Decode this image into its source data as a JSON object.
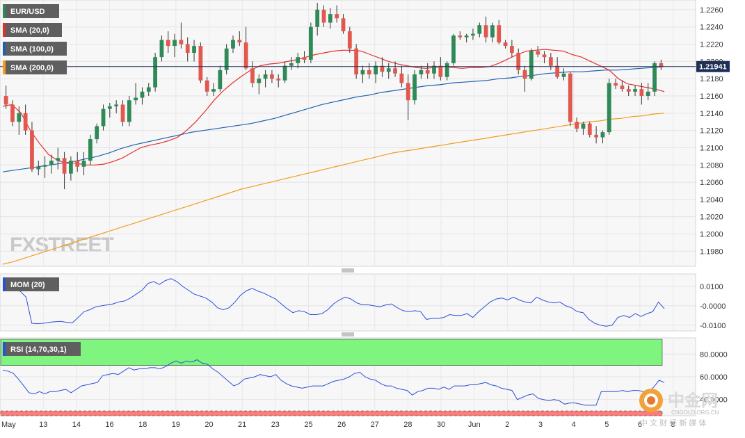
{
  "chart_data": [
    {
      "type": "candlestick",
      "panel": "price",
      "symbol": "EUR/USD",
      "timeframe": "4H",
      "ylim": [
        1.1965,
        1.2268
      ],
      "y_ticks": [
        "1.2260",
        "1.2240",
        "1.2220",
        "1.2200",
        "1.2180",
        "1.2160",
        "1.2140",
        "1.2120",
        "1.2100",
        "1.2080",
        "1.2060",
        "1.2040",
        "1.2020",
        "1.2000",
        "1.1980"
      ],
      "last_price": 1.21941,
      "last_price_label": "1.21941",
      "x_labels": [
        "May",
        "13",
        "14",
        "16",
        "18",
        "19",
        "20",
        "21",
        "23",
        "25",
        "26",
        "27",
        "28",
        "30",
        "Jun",
        "2",
        "3",
        "4",
        "5",
        "6",
        "8"
      ],
      "legend": [
        {
          "label": "EUR/USD",
          "color": "#2e8b57"
        },
        {
          "label": "SMA (20,0)",
          "color": "#e52f2f"
        },
        {
          "label": "SMA (100,0)",
          "color": "#2060b0"
        },
        {
          "label": "SMA (200,0)",
          "color": "#f39c1f"
        }
      ],
      "candles": [
        [
          1.216,
          1.2172,
          1.2145,
          1.215
        ],
        [
          1.215,
          1.2155,
          1.2125,
          1.213
        ],
        [
          1.213,
          1.2148,
          1.2115,
          1.214
        ],
        [
          1.214,
          1.215,
          1.2115,
          1.212
        ],
        [
          1.212,
          1.213,
          1.2072,
          1.2075
        ],
        [
          1.2075,
          1.2085,
          1.2068,
          1.2078
        ],
        [
          1.2078,
          1.209,
          1.2065,
          1.208
        ],
        [
          1.208,
          1.2092,
          1.207,
          1.2085
        ],
        [
          1.2085,
          1.21,
          1.2075,
          1.2088
        ],
        [
          1.2088,
          1.2095,
          1.2052,
          1.207
        ],
        [
          1.207,
          1.209,
          1.2062,
          1.2085
        ],
        [
          1.2085,
          1.2095,
          1.2072,
          1.2078
        ],
        [
          1.2078,
          1.2095,
          1.2068,
          1.2085
        ],
        [
          1.2085,
          1.2115,
          1.208,
          1.211
        ],
        [
          1.211,
          1.2128,
          1.2105,
          1.2125
        ],
        [
          1.2125,
          1.215,
          1.212,
          1.2145
        ],
        [
          1.2145,
          1.2152,
          1.2135,
          1.2148
        ],
        [
          1.2148,
          1.2155,
          1.214,
          1.215
        ],
        [
          1.215,
          1.2155,
          1.2125,
          1.213
        ],
        [
          1.213,
          1.216,
          1.2125,
          1.2155
        ],
        [
          1.2155,
          1.2175,
          1.215,
          1.2158
        ],
        [
          1.2158,
          1.217,
          1.215,
          1.2165
        ],
        [
          1.2165,
          1.2175,
          1.216,
          1.217
        ],
        [
          1.217,
          1.221,
          1.2165,
          1.2205
        ],
        [
          1.2205,
          1.223,
          1.22,
          1.2225
        ],
        [
          1.2225,
          1.2235,
          1.221,
          1.2218
        ],
        [
          1.2218,
          1.2232,
          1.2205,
          1.2225
        ],
        [
          1.2225,
          1.2245,
          1.2215,
          1.222
        ],
        [
          1.222,
          1.2228,
          1.22,
          1.221
        ],
        [
          1.221,
          1.2225,
          1.22,
          1.2218
        ],
        [
          1.2218,
          1.2222,
          1.2175,
          1.2178
        ],
        [
          1.2178,
          1.2182,
          1.216,
          1.2165
        ],
        [
          1.2165,
          1.2175,
          1.216,
          1.2168
        ],
        [
          1.2168,
          1.2195,
          1.2165,
          1.219
        ],
        [
          1.219,
          1.222,
          1.2185,
          1.2215
        ],
        [
          1.2215,
          1.223,
          1.221,
          1.2225
        ],
        [
          1.2225,
          1.2235,
          1.2218,
          1.2222
        ],
        [
          1.2222,
          1.224,
          1.219,
          1.2192
        ],
        [
          1.2192,
          1.22,
          1.217,
          1.2175
        ],
        [
          1.2175,
          1.2185,
          1.2162,
          1.218
        ],
        [
          1.218,
          1.219,
          1.217,
          1.2185
        ],
        [
          1.2185,
          1.219,
          1.2175,
          1.218
        ],
        [
          1.218,
          1.2185,
          1.217,
          1.2178
        ],
        [
          1.2178,
          1.22,
          1.2175,
          1.2195
        ],
        [
          1.2195,
          1.2205,
          1.219,
          1.2198
        ],
        [
          1.2198,
          1.221,
          1.2192,
          1.2205
        ],
        [
          1.2205,
          1.2212,
          1.2198,
          1.2202
        ],
        [
          1.2202,
          1.2245,
          1.2198,
          1.224
        ],
        [
          1.224,
          1.2268,
          1.223,
          1.226
        ],
        [
          1.226,
          1.2265,
          1.224,
          1.2245
        ],
        [
          1.2245,
          1.2262,
          1.2238,
          1.2255
        ],
        [
          1.2255,
          1.2265,
          1.2245,
          1.225
        ],
        [
          1.225,
          1.2255,
          1.2232,
          1.2235
        ],
        [
          1.2235,
          1.224,
          1.221,
          1.2215
        ],
        [
          1.2215,
          1.222,
          1.218,
          1.2185
        ],
        [
          1.2185,
          1.2195,
          1.2175,
          1.219
        ],
        [
          1.219,
          1.2198,
          1.218,
          1.2185
        ],
        [
          1.2185,
          1.22,
          1.2175,
          1.2195
        ],
        [
          1.2195,
          1.2205,
          1.2182,
          1.2188
        ],
        [
          1.2188,
          1.2198,
          1.218,
          1.2192
        ],
        [
          1.2192,
          1.22,
          1.2182,
          1.2186
        ],
        [
          1.2186,
          1.2195,
          1.217,
          1.2175
        ],
        [
          1.2175,
          1.2185,
          1.2132,
          1.2155
        ],
        [
          1.2155,
          1.219,
          1.215,
          1.2185
        ],
        [
          1.2185,
          1.2195,
          1.218,
          1.219
        ],
        [
          1.219,
          1.2198,
          1.218,
          1.2186
        ],
        [
          1.2186,
          1.22,
          1.218,
          1.2195
        ],
        [
          1.2195,
          1.2205,
          1.2178,
          1.2182
        ],
        [
          1.2182,
          1.22,
          1.2178,
          1.2198
        ],
        [
          1.2198,
          1.2232,
          1.2195,
          1.223
        ],
        [
          1.223,
          1.2235,
          1.2225,
          1.2228
        ],
        [
          1.2228,
          1.2232,
          1.2222,
          1.223
        ],
        [
          1.223,
          1.2238,
          1.2225,
          1.2232
        ],
        [
          1.2232,
          1.2245,
          1.2228,
          1.2242
        ],
        [
          1.2242,
          1.2252,
          1.2222,
          1.2228
        ],
        [
          1.2228,
          1.2245,
          1.2222,
          1.2242
        ],
        [
          1.2242,
          1.2248,
          1.222,
          1.2222
        ],
        [
          1.2222,
          1.2225,
          1.2215,
          1.2218
        ],
        [
          1.2218,
          1.2225,
          1.2205,
          1.221
        ],
        [
          1.221,
          1.2215,
          1.2185,
          1.219
        ],
        [
          1.219,
          1.2195,
          1.2165,
          1.218
        ],
        [
          1.218,
          1.2215,
          1.2178,
          1.2212
        ],
        [
          1.2212,
          1.2218,
          1.2205,
          1.2208
        ],
        [
          1.2208,
          1.2212,
          1.2198,
          1.2205
        ],
        [
          1.2205,
          1.221,
          1.219,
          1.2195
        ],
        [
          1.2195,
          1.2205,
          1.218,
          1.2182
        ],
        [
          1.2182,
          1.2192,
          1.2178,
          1.2186
        ],
        [
          1.2186,
          1.2188,
          1.2125,
          1.213
        ],
        [
          1.213,
          1.2135,
          1.2118,
          1.2122
        ],
        [
          1.2122,
          1.213,
          1.2115,
          1.2128
        ],
        [
          1.2128,
          1.213,
          1.2112,
          1.2115
        ],
        [
          1.2115,
          1.2125,
          1.2105,
          1.2112
        ],
        [
          1.2112,
          1.212,
          1.2105,
          1.2118
        ],
        [
          1.2118,
          1.218,
          1.2115,
          1.2175
        ],
        [
          1.2175,
          1.218,
          1.2168,
          1.2172
        ],
        [
          1.2172,
          1.2178,
          1.2165,
          1.2168
        ],
        [
          1.2168,
          1.2172,
          1.216,
          1.2165
        ],
        [
          1.2165,
          1.2172,
          1.216,
          1.2168
        ],
        [
          1.2168,
          1.2175,
          1.215,
          1.216
        ],
        [
          1.216,
          1.2175,
          1.2155,
          1.2165
        ],
        [
          1.2165,
          1.22,
          1.216,
          1.2198
        ],
        [
          1.2198,
          1.2202,
          1.219,
          1.2194
        ]
      ],
      "sma20": [
        1.2148,
        1.215,
        1.214,
        1.212,
        1.2105,
        1.2092,
        1.2085,
        1.2082,
        1.2082,
        1.208,
        1.208,
        1.2081,
        1.2084,
        1.2088,
        1.2094,
        1.21,
        1.2103,
        1.2105,
        1.2108,
        1.2112,
        1.212,
        1.213,
        1.2142,
        1.2155,
        1.2166,
        1.2175,
        1.2183,
        1.219,
        1.2195,
        1.2197,
        1.2198,
        1.22,
        1.2202,
        1.2205,
        1.2208,
        1.221,
        1.2212,
        1.2213,
        1.2213,
        1.2212,
        1.2208,
        1.2204,
        1.22,
        1.2197,
        1.2195,
        1.2193,
        1.2192,
        1.2193,
        1.2194,
        1.2193,
        1.2192,
        1.2193,
        1.2193,
        1.2194,
        1.2198,
        1.2203,
        1.2208,
        1.2212,
        1.2213,
        1.2214,
        1.2213,
        1.2212,
        1.2208,
        1.2205,
        1.22,
        1.2195,
        1.219,
        1.218,
        1.2174,
        1.2172,
        1.217,
        1.2168,
        1.2165
      ],
      "sma100": [
        1.2072,
        1.2074,
        1.2076,
        1.2078,
        1.208,
        1.2082,
        1.2084,
        1.2087,
        1.209,
        1.2094,
        1.2099,
        1.2103,
        1.2106,
        1.2109,
        1.2112,
        1.2115,
        1.2118,
        1.212,
        1.2122,
        1.2124,
        1.2126,
        1.2128,
        1.2131,
        1.2134,
        1.2138,
        1.2142,
        1.2146,
        1.215,
        1.2153,
        1.2156,
        1.2159,
        1.2161,
        1.2164,
        1.2166,
        1.2168,
        1.217,
        1.2172,
        1.2173,
        1.2175,
        1.2176,
        1.2177,
        1.2178,
        1.218,
        1.2181,
        1.2183,
        1.2184,
        1.2186,
        1.2187,
        1.2188,
        1.2188,
        1.2189,
        1.219,
        1.219,
        1.2191,
        1.2192,
        1.2193,
        1.2194
      ],
      "sma200": [
        1.1965,
        1.1968,
        1.1972,
        1.1976,
        1.198,
        1.1984,
        1.1988,
        1.1992,
        1.1996,
        1.2,
        1.2004,
        1.2008,
        1.2012,
        1.2016,
        1.202,
        1.2024,
        1.2028,
        1.2032,
        1.2036,
        1.204,
        1.2044,
        1.2048,
        1.2052,
        1.2055,
        1.2058,
        1.2061,
        1.2064,
        1.2067,
        1.207,
        1.2073,
        1.2076,
        1.2079,
        1.2082,
        1.2085,
        1.2088,
        1.2091,
        1.2094,
        1.2096,
        1.2098,
        1.21,
        1.2102,
        1.2104,
        1.2106,
        1.2108,
        1.211,
        1.2112,
        1.2114,
        1.2116,
        1.2118,
        1.212,
        1.2122,
        1.2124,
        1.2126,
        1.2128,
        1.213,
        1.2131,
        1.2133,
        1.2134,
        1.2136,
        1.2137,
        1.2139,
        1.214
      ]
    },
    {
      "type": "line",
      "panel": "momentum",
      "name": "MOM (20)",
      "ylim": [
        -0.0115,
        0.015
      ],
      "y_ticks": [
        "0.0100",
        "-0.0000",
        "-0.0100"
      ],
      "color": "#2b4fd8",
      "values": [
        0.0115,
        0.01,
        0.0085,
        0.0075,
        0.0045,
        -0.009,
        -0.0092,
        -0.009,
        -0.0085,
        -0.0082,
        -0.008,
        -0.0085,
        -0.0087,
        -0.006,
        -0.003,
        -0.002,
        -0.0005,
        0.0,
        0.0005,
        0.001,
        0.002,
        0.0025,
        0.004,
        0.006,
        0.008,
        0.0115,
        0.0125,
        0.011,
        0.013,
        0.014,
        0.0125,
        0.01,
        0.008,
        0.006,
        0.005,
        0.004,
        0.002,
        -0.001,
        -0.002,
        -0.001,
        0.002,
        0.0055,
        0.0078,
        0.009,
        0.0075,
        0.0065,
        0.005,
        0.0035,
        0.001,
        -0.0015,
        -0.0035,
        -0.0025,
        -0.003,
        -0.0045,
        -0.0045,
        -0.004,
        -0.002,
        0.001,
        0.003,
        0.0045,
        0.0035,
        0.0015,
        0.0005,
        0.0005,
        0.0,
        -0.0005,
        0.0005,
        0.001,
        -0.001,
        -0.0025,
        -0.003,
        -0.0025,
        -0.003,
        -0.007,
        -0.0065,
        -0.0065,
        -0.006,
        -0.0045,
        -0.005,
        -0.005,
        -0.004,
        -0.006,
        -0.003,
        -0.0005,
        0.002,
        0.0035,
        0.004,
        0.003,
        0.0045,
        0.003,
        0.002,
        0.0015,
        0.0045,
        0.003,
        0.002,
        0.0015,
        0.002,
        0.0,
        -0.001,
        -0.003,
        -0.0035,
        -0.007,
        -0.009,
        -0.01,
        -0.0105,
        -0.01,
        -0.006,
        -0.005,
        -0.006,
        -0.004,
        -0.0055,
        -0.004,
        -0.003,
        0.002,
        -0.0015
      ]
    },
    {
      "type": "line",
      "panel": "rsi",
      "name": "RSI (14,70,30,1)",
      "ylim": [
        27,
        93
      ],
      "y_ticks": [
        "80.0000",
        "60.0000",
        "40.0000"
      ],
      "overbought": 70,
      "oversold": 30,
      "color": "#2b4fd8",
      "values": [
        66,
        65,
        63,
        58,
        52,
        46,
        45,
        47,
        45,
        47,
        47,
        48,
        49,
        46,
        49,
        52,
        53,
        54,
        55,
        61,
        62,
        63,
        62,
        65,
        68,
        66,
        67,
        67,
        68,
        68,
        67,
        69,
        72,
        74,
        72,
        74,
        73,
        75,
        72,
        71,
        67,
        64,
        60,
        56,
        52,
        54,
        58,
        59,
        60,
        62,
        61,
        60,
        62,
        57,
        54,
        52,
        51,
        50,
        51,
        52,
        52,
        52,
        54,
        56,
        57,
        58,
        60,
        63,
        64,
        60,
        58,
        57,
        54,
        52,
        52,
        50,
        49,
        48,
        44,
        47,
        48,
        50,
        50,
        49,
        51,
        49,
        52,
        52,
        52,
        53,
        53,
        54,
        55,
        53,
        52,
        50,
        49,
        48,
        40,
        42,
        44,
        45,
        41,
        40,
        39,
        40,
        39,
        36,
        37,
        37,
        36,
        35,
        35,
        35,
        47,
        47,
        47,
        47,
        48,
        47,
        48,
        48,
        47,
        47,
        51,
        57,
        55
      ],
      "band_fill_top_color": "#7ff47f",
      "band_fill_bottom_color": "#fc7c7c"
    }
  ],
  "watermark": "FXSTREET",
  "watermark_colors": {
    "fx": "#c9c9c9",
    "street": "#f6b59c"
  },
  "corner_logo": {
    "chinese_name": "中金网",
    "domain": "CNGOLD.ORG.CN",
    "tagline": "中 文 财 经 新 媒 体"
  },
  "divider_handles": [
    "price-mom",
    "mom-rsi"
  ]
}
